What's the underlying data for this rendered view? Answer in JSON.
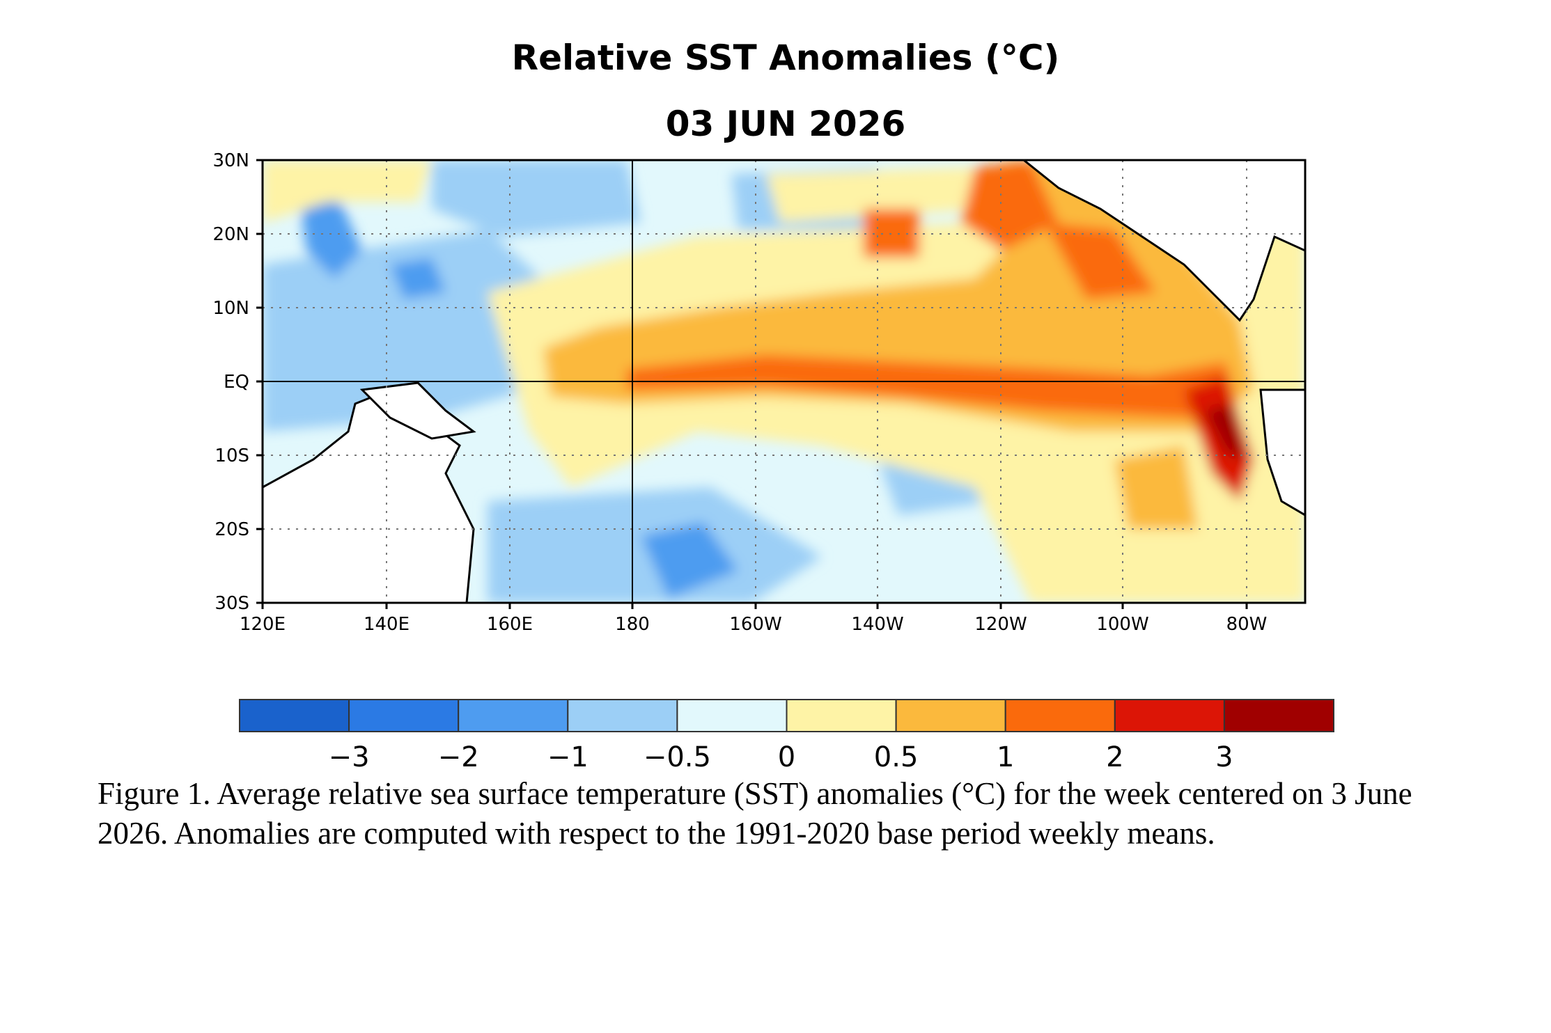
{
  "map": {
    "title": "Relative SST Anomalies (°C)",
    "date": "03 JUN 2026",
    "lat_labels": [
      "30N",
      "20N",
      "10N",
      "EQ",
      "10S",
      "20S",
      "30S"
    ],
    "lon_labels": [
      "120E",
      "140E",
      "160E",
      "180",
      "160W",
      "140W",
      "120W",
      "100W",
      "80W"
    ],
    "land_color": "#ffffff",
    "coast_color": "#000000",
    "gridline_style": "dotted"
  },
  "colorbar": {
    "colors": [
      "#1a62cc",
      "#2b7ae4",
      "#4e9cf0",
      "#9ccff6",
      "#e2f8fc",
      "#fef3a6",
      "#fbb93d",
      "#fa6a0c",
      "#dc1506",
      "#a00000"
    ],
    "labels": [
      "−3",
      "−2",
      "−1",
      "−0.5",
      "0",
      "0.5",
      "1",
      "2",
      "3"
    ]
  },
  "caption": "Figure 1. Average relative sea surface temperature (SST) anomalies (°C) for the week centered on 3 June 2026.  Anomalies are computed with respect to the 1991-2020 base period weekly means."
}
